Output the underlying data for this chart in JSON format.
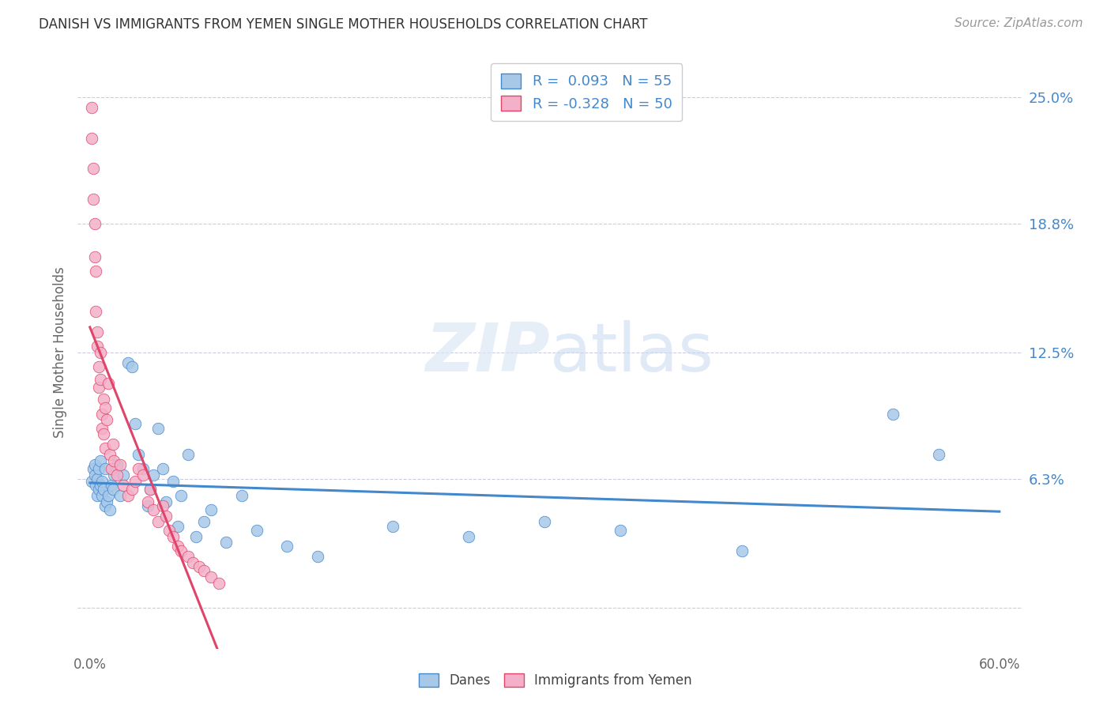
{
  "title": "DANISH VS IMMIGRANTS FROM YEMEN SINGLE MOTHER HOUSEHOLDS CORRELATION CHART",
  "source": "Source: ZipAtlas.com",
  "ylabel": "Single Mother Households",
  "ytick_labels": [
    "6.3%",
    "12.5%",
    "18.8%",
    "25.0%"
  ],
  "ytick_values": [
    0.063,
    0.125,
    0.188,
    0.25
  ],
  "xlim": [
    0.0,
    0.6
  ],
  "ylim": [
    -0.02,
    0.27
  ],
  "danes_R": 0.093,
  "danes_N": 55,
  "yemen_R": -0.328,
  "yemen_N": 50,
  "color_danes": "#a8c8e8",
  "color_yemen": "#f4b0c8",
  "line_color_danes": "#4488cc",
  "line_color_yemen": "#e04468",
  "line_color_extrapolate": "#cccccc",
  "background_color": "#ffffff",
  "watermark": "ZIPatlas",
  "danes_x": [
    0.001,
    0.002,
    0.003,
    0.003,
    0.004,
    0.005,
    0.005,
    0.006,
    0.006,
    0.007,
    0.007,
    0.008,
    0.008,
    0.009,
    0.01,
    0.01,
    0.011,
    0.012,
    0.013,
    0.014,
    0.015,
    0.016,
    0.018,
    0.02,
    0.022,
    0.025,
    0.028,
    0.03,
    0.032,
    0.035,
    0.038,
    0.04,
    0.042,
    0.045,
    0.048,
    0.05,
    0.055,
    0.058,
    0.06,
    0.065,
    0.07,
    0.075,
    0.08,
    0.09,
    0.1,
    0.11,
    0.13,
    0.15,
    0.2,
    0.25,
    0.3,
    0.35,
    0.43,
    0.53,
    0.56
  ],
  "danes_y": [
    0.062,
    0.068,
    0.065,
    0.07,
    0.06,
    0.055,
    0.063,
    0.068,
    0.058,
    0.06,
    0.072,
    0.055,
    0.062,
    0.058,
    0.05,
    0.068,
    0.052,
    0.055,
    0.048,
    0.06,
    0.058,
    0.065,
    0.07,
    0.055,
    0.065,
    0.12,
    0.118,
    0.09,
    0.075,
    0.068,
    0.05,
    0.058,
    0.065,
    0.088,
    0.068,
    0.052,
    0.062,
    0.04,
    0.055,
    0.075,
    0.035,
    0.042,
    0.048,
    0.032,
    0.055,
    0.038,
    0.03,
    0.025,
    0.04,
    0.035,
    0.042,
    0.038,
    0.028,
    0.095,
    0.075
  ],
  "yemen_x": [
    0.001,
    0.001,
    0.002,
    0.002,
    0.003,
    0.003,
    0.004,
    0.004,
    0.005,
    0.005,
    0.006,
    0.006,
    0.007,
    0.007,
    0.008,
    0.008,
    0.009,
    0.009,
    0.01,
    0.01,
    0.011,
    0.012,
    0.013,
    0.014,
    0.015,
    0.016,
    0.018,
    0.02,
    0.022,
    0.025,
    0.028,
    0.03,
    0.032,
    0.035,
    0.038,
    0.04,
    0.042,
    0.045,
    0.048,
    0.05,
    0.052,
    0.055,
    0.058,
    0.06,
    0.065,
    0.068,
    0.072,
    0.075,
    0.08,
    0.085
  ],
  "yemen_y": [
    0.245,
    0.23,
    0.215,
    0.2,
    0.188,
    0.172,
    0.165,
    0.145,
    0.135,
    0.128,
    0.118,
    0.108,
    0.125,
    0.112,
    0.095,
    0.088,
    0.102,
    0.085,
    0.098,
    0.078,
    0.092,
    0.11,
    0.075,
    0.068,
    0.08,
    0.072,
    0.065,
    0.07,
    0.06,
    0.055,
    0.058,
    0.062,
    0.068,
    0.065,
    0.052,
    0.058,
    0.048,
    0.042,
    0.05,
    0.045,
    0.038,
    0.035,
    0.03,
    0.028,
    0.025,
    0.022,
    0.02,
    0.018,
    0.015,
    0.012
  ]
}
